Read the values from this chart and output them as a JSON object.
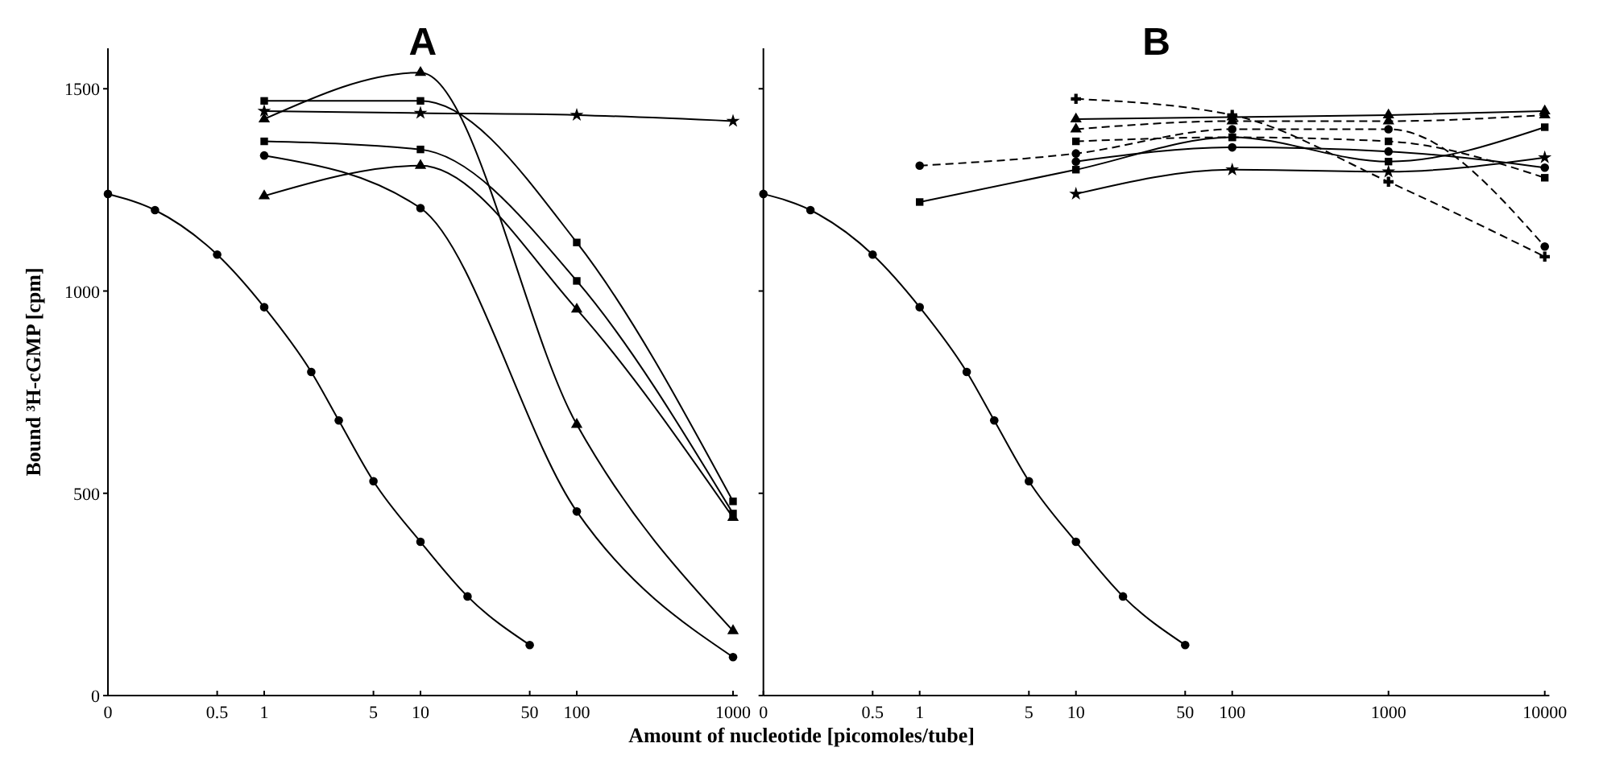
{
  "chart_data": [
    {
      "type": "line",
      "title": "A",
      "ylabel": "Bound ³H-cGMP [cpm]",
      "xlabel": "Amount of nucleotide [picomoles/tube]",
      "log": "x",
      "xlim": [
        0.1,
        1070
      ],
      "xticks": [
        {
          "value": 0.1,
          "label": "0"
        },
        0.5,
        1,
        5,
        10,
        50,
        100,
        1000
      ],
      "ylim": [
        0,
        1600
      ],
      "yticks": [
        0,
        500,
        1000,
        1500
      ],
      "grid": false,
      "series": [
        {
          "color": "#000000",
          "marker": "circle",
          "line_style": "solid",
          "x": [
            0.1,
            0.2,
            0.5,
            1,
            2,
            3,
            5,
            10,
            20,
            50
          ],
          "values": [
            1240,
            1200,
            1090,
            960,
            800,
            680,
            530,
            380,
            245,
            125
          ]
        },
        {
          "color": "#000000",
          "marker": "square",
          "line_style": "solid",
          "x": [
            1,
            10,
            100,
            1000
          ],
          "values": [
            1470,
            1470,
            1120,
            480
          ]
        },
        {
          "color": "#000000",
          "marker": "triangle",
          "line_style": "solid",
          "x": [
            1,
            10,
            100,
            1000
          ],
          "values": [
            1425,
            1540,
            670,
            160
          ]
        },
        {
          "color": "#000000",
          "marker": "star",
          "line_style": "solid",
          "x": [
            1,
            10,
            100,
            1000
          ],
          "values": [
            1445,
            1440,
            1435,
            1420
          ]
        },
        {
          "color": "#000000",
          "marker": "square",
          "line_style": "solid",
          "x": [
            1,
            10,
            100,
            1000
          ],
          "values": [
            1370,
            1350,
            1025,
            450
          ]
        },
        {
          "color": "#000000",
          "marker": "circle",
          "line_style": "solid",
          "x": [
            1,
            10,
            100,
            1000
          ],
          "values": [
            1335,
            1205,
            455,
            95
          ]
        },
        {
          "color": "#000000",
          "marker": "triangle",
          "line_style": "solid",
          "x": [
            1,
            10,
            100,
            1000
          ],
          "values": [
            1235,
            1310,
            955,
            440
          ]
        }
      ]
    },
    {
      "type": "line",
      "title": "B",
      "log": "x",
      "tick_labels": "x",
      "xlim": [
        0.1,
        10700
      ],
      "xticks": [
        {
          "value": 0.1,
          "label": "0"
        },
        0.5,
        1,
        5,
        10,
        50,
        100,
        1000,
        10000
      ],
      "ylim": [
        0,
        1600
      ],
      "yticks": [
        0,
        500,
        1000,
        1500
      ],
      "grid": false,
      "series": [
        {
          "color": "#000000",
          "marker": "circle",
          "line_style": "solid",
          "x": [
            0.1,
            0.2,
            0.5,
            1,
            2,
            3,
            5,
            10,
            20,
            50
          ],
          "values": [
            1240,
            1200,
            1090,
            960,
            800,
            680,
            530,
            380,
            245,
            125
          ]
        },
        {
          "color": "#000000",
          "marker": "square",
          "line_style": "solid",
          "x": [
            1,
            10,
            100,
            1000,
            10000
          ],
          "values": [
            1220,
            1300,
            1380,
            1320,
            1405
          ]
        },
        {
          "color": "#000000",
          "marker": "circle",
          "line_style": "dashed",
          "x": [
            1,
            10,
            100,
            1000,
            10000
          ],
          "values": [
            1310,
            1340,
            1400,
            1400,
            1110
          ]
        },
        {
          "color": "#000000",
          "marker": "cross",
          "line_style": "dashed",
          "x": [
            10,
            100,
            1000,
            10000
          ],
          "values": [
            1475,
            1435,
            1270,
            1085
          ]
        },
        {
          "color": "#000000",
          "marker": "triangle",
          "line_style": "solid",
          "x": [
            10,
            100,
            1000,
            10000
          ],
          "values": [
            1425,
            1430,
            1435,
            1445
          ]
        },
        {
          "color": "#000000",
          "marker": "triangle",
          "line_style": "dashed",
          "x": [
            10,
            100,
            1000,
            10000
          ],
          "values": [
            1400,
            1420,
            1420,
            1435
          ]
        },
        {
          "color": "#000000",
          "marker": "square",
          "line_style": "dashed",
          "x": [
            10,
            100,
            1000,
            10000
          ],
          "values": [
            1370,
            1380,
            1370,
            1280
          ]
        },
        {
          "color": "#000000",
          "marker": "circle",
          "line_style": "solid",
          "x": [
            10,
            100,
            1000,
            10000
          ],
          "values": [
            1320,
            1355,
            1345,
            1305
          ]
        },
        {
          "color": "#000000",
          "marker": "star",
          "line_style": "solid",
          "x": [
            10,
            100,
            1000,
            10000
          ],
          "values": [
            1240,
            1300,
            1295,
            1330
          ]
        }
      ]
    }
  ]
}
